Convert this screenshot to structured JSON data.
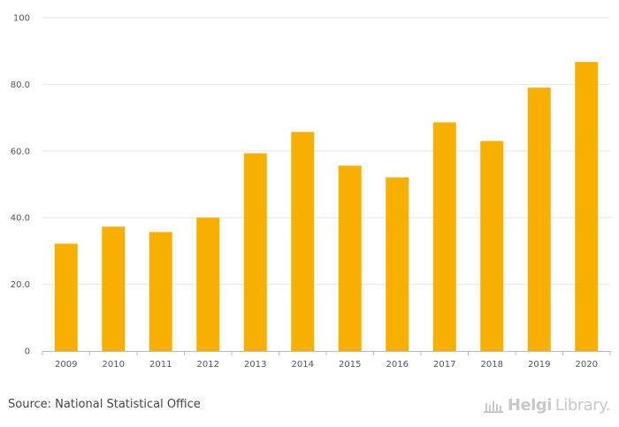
{
  "chart_data": {
    "type": "bar",
    "categories": [
      "2009",
      "2010",
      "2011",
      "2012",
      "2013",
      "2014",
      "2015",
      "2016",
      "2017",
      "2018",
      "2019",
      "2020"
    ],
    "values": [
      32.2,
      37.3,
      35.7,
      40.0,
      59.3,
      65.7,
      55.6,
      52.1,
      68.6,
      63.0,
      79.0,
      86.7
    ],
    "ylim": [
      0,
      100
    ],
    "yticks": [
      {
        "value": 0,
        "label": "0"
      },
      {
        "value": 20,
        "label": "20.0"
      },
      {
        "value": 40,
        "label": "40.0"
      },
      {
        "value": 60,
        "label": "60.0"
      },
      {
        "value": 80,
        "label": "80.0"
      },
      {
        "value": 100,
        "label": "100"
      }
    ],
    "title": "",
    "xlabel": "",
    "ylabel": "",
    "bar_color": "#F8B000",
    "grid": true
  },
  "footer": {
    "source": "Source: National Statistical Office",
    "logo_brand": "Helgi",
    "logo_suffix": "Library."
  },
  "colors": {
    "grid": "#e6e6e6",
    "axis": "#bbbbbb"
  }
}
